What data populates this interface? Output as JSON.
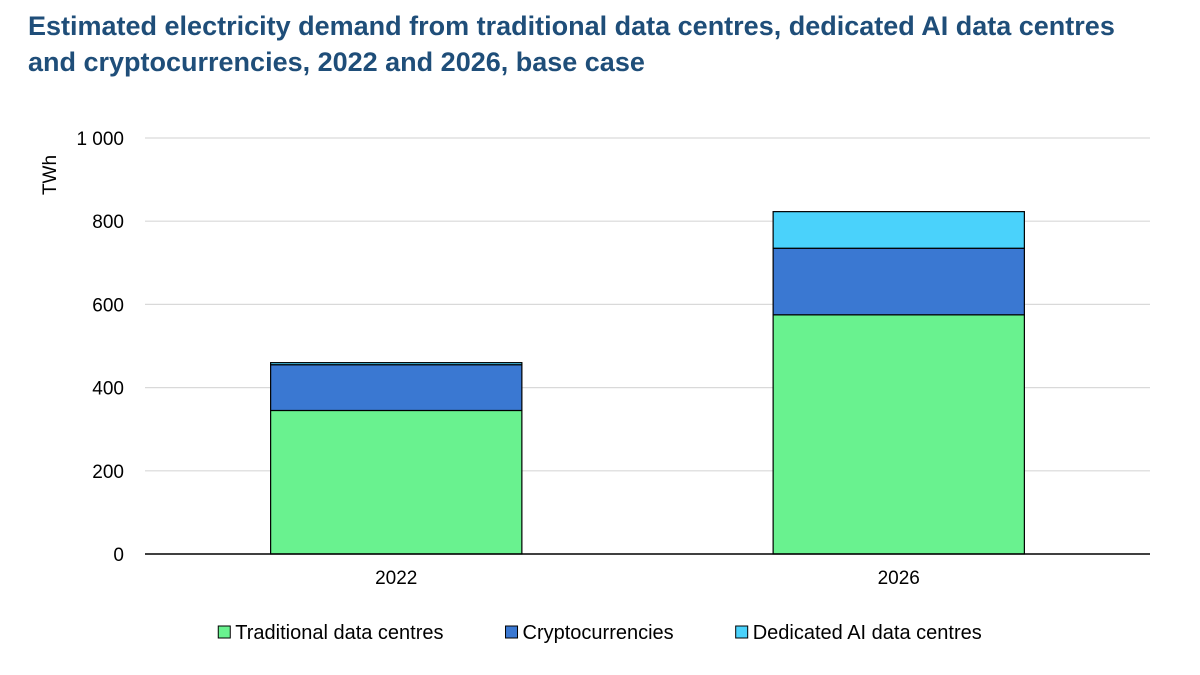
{
  "chart_data": {
    "type": "bar",
    "stacked": true,
    "title_lines": [
      "Estimated electricity demand from traditional data centres, dedicated AI data centres",
      "and cryptocurrencies, 2022 and 2026, base case"
    ],
    "ylabel": "TWh",
    "xlabel": "",
    "categories": [
      "2022",
      "2026"
    ],
    "ylim": [
      0,
      1000
    ],
    "yticks": [
      0,
      200,
      400,
      600,
      800,
      1000
    ],
    "ytick_labels": [
      "0",
      "200",
      "400",
      "600",
      "800",
      "1 000"
    ],
    "grid": true,
    "legend_position": "bottom",
    "series": [
      {
        "name": "Traditional data centres",
        "values": [
          345,
          575
        ],
        "color": "#69f28f"
      },
      {
        "name": "Cryptocurrencies",
        "values": [
          110,
          160
        ],
        "color": "#3a78d2"
      },
      {
        "name": "Dedicated AI data centres",
        "values": [
          5,
          88
        ],
        "color": "#4ad2fb"
      }
    ]
  }
}
